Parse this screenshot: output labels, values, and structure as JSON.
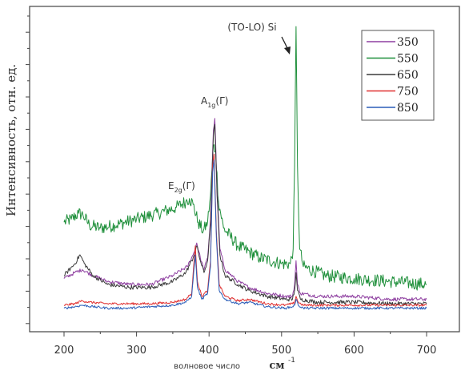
{
  "chart_data": {
    "type": "line",
    "xlabel": "волновое число",
    "xlabel_unit": "см",
    "xlabel_exp": "-1",
    "ylabel": "Интенсивность, отн. ед.",
    "xlim": [
      150,
      700
    ],
    "ylim": [
      0,
      1.0
    ],
    "x_ticks": [
      200,
      300,
      400,
      500,
      600,
      700
    ],
    "y_ticks_labeled": false,
    "grid": false,
    "legend_position": "top-right",
    "annotations": [
      {
        "id": "to-lo-si",
        "text": "(TO-LO) Si",
        "x": 520,
        "y": 0.975
      },
      {
        "id": "a1g",
        "main": "A",
        "sub": "1g",
        "tail": "(Γ)",
        "x": 408,
        "y": 0.675
      },
      {
        "id": "e2g",
        "main": "E",
        "sub": "2g",
        "tail": "(Γ)",
        "x": 372,
        "y": 0.49
      }
    ],
    "series": [
      {
        "name": "350",
        "color": "#8e3fa0",
        "points": [
          [
            200,
            0.12
          ],
          [
            215,
            0.14
          ],
          [
            225,
            0.15
          ],
          [
            240,
            0.13
          ],
          [
            260,
            0.11
          ],
          [
            290,
            0.1
          ],
          [
            320,
            0.1
          ],
          [
            350,
            0.13
          ],
          [
            370,
            0.16
          ],
          [
            378,
            0.2
          ],
          [
            383,
            0.24
          ],
          [
            388,
            0.19
          ],
          [
            393,
            0.15
          ],
          [
            398,
            0.19
          ],
          [
            402,
            0.32
          ],
          [
            406,
            0.62
          ],
          [
            408,
            0.66
          ],
          [
            411,
            0.42
          ],
          [
            415,
            0.22
          ],
          [
            422,
            0.15
          ],
          [
            440,
            0.11
          ],
          [
            455,
            0.09
          ],
          [
            480,
            0.07
          ],
          [
            505,
            0.06
          ],
          [
            515,
            0.06
          ],
          [
            518,
            0.1
          ],
          [
            520,
            0.18
          ],
          [
            522,
            0.1
          ],
          [
            526,
            0.07
          ],
          [
            550,
            0.06
          ],
          [
            600,
            0.06
          ],
          [
            650,
            0.05
          ],
          [
            700,
            0.05
          ]
        ]
      },
      {
        "name": "550",
        "color": "#1e8f3a",
        "points": [
          [
            200,
            0.31
          ],
          [
            210,
            0.32
          ],
          [
            220,
            0.34
          ],
          [
            226,
            0.335
          ],
          [
            235,
            0.3
          ],
          [
            250,
            0.29
          ],
          [
            270,
            0.3
          ],
          [
            300,
            0.32
          ],
          [
            330,
            0.34
          ],
          [
            355,
            0.36
          ],
          [
            368,
            0.38
          ],
          [
            373,
            0.39
          ],
          [
            378,
            0.37
          ],
          [
            385,
            0.31
          ],
          [
            392,
            0.28
          ],
          [
            398,
            0.31
          ],
          [
            402,
            0.4
          ],
          [
            406,
            0.57
          ],
          [
            409,
            0.55
          ],
          [
            413,
            0.38
          ],
          [
            420,
            0.29
          ],
          [
            440,
            0.23
          ],
          [
            470,
            0.19
          ],
          [
            500,
            0.17
          ],
          [
            512,
            0.17
          ],
          [
            516,
            0.22
          ],
          [
            518,
            0.5
          ],
          [
            520,
            0.97
          ],
          [
            522,
            0.5
          ],
          [
            525,
            0.22
          ],
          [
            530,
            0.16
          ],
          [
            560,
            0.13
          ],
          [
            600,
            0.12
          ],
          [
            650,
            0.11
          ],
          [
            700,
            0.1
          ]
        ]
      },
      {
        "name": "650",
        "color": "#3a3a3a",
        "points": [
          [
            200,
            0.13
          ],
          [
            215,
            0.17
          ],
          [
            222,
            0.2
          ],
          [
            228,
            0.17
          ],
          [
            240,
            0.13
          ],
          [
            260,
            0.1
          ],
          [
            290,
            0.09
          ],
          [
            320,
            0.09
          ],
          [
            350,
            0.11
          ],
          [
            368,
            0.14
          ],
          [
            378,
            0.19
          ],
          [
            383,
            0.23
          ],
          [
            388,
            0.18
          ],
          [
            393,
            0.14
          ],
          [
            398,
            0.18
          ],
          [
            402,
            0.3
          ],
          [
            406,
            0.6
          ],
          [
            408,
            0.64
          ],
          [
            411,
            0.4
          ],
          [
            415,
            0.2
          ],
          [
            422,
            0.13
          ],
          [
            440,
            0.1
          ],
          [
            455,
            0.08
          ],
          [
            480,
            0.06
          ],
          [
            505,
            0.05
          ],
          [
            515,
            0.05
          ],
          [
            518,
            0.08
          ],
          [
            520,
            0.14
          ],
          [
            522,
            0.08
          ],
          [
            526,
            0.05
          ],
          [
            550,
            0.04
          ],
          [
            600,
            0.04
          ],
          [
            650,
            0.035
          ],
          [
            700,
            0.035
          ]
        ]
      },
      {
        "name": "750",
        "color": "#e03030",
        "points": [
          [
            200,
            0.03
          ],
          [
            215,
            0.035
          ],
          [
            225,
            0.045
          ],
          [
            235,
            0.04
          ],
          [
            260,
            0.035
          ],
          [
            290,
            0.035
          ],
          [
            320,
            0.035
          ],
          [
            350,
            0.04
          ],
          [
            368,
            0.05
          ],
          [
            376,
            0.07
          ],
          [
            381,
            0.23
          ],
          [
            384,
            0.11
          ],
          [
            390,
            0.06
          ],
          [
            398,
            0.08
          ],
          [
            402,
            0.18
          ],
          [
            405,
            0.5
          ],
          [
            407,
            0.54
          ],
          [
            410,
            0.28
          ],
          [
            414,
            0.1
          ],
          [
            422,
            0.06
          ],
          [
            440,
            0.045
          ],
          [
            455,
            0.05
          ],
          [
            480,
            0.035
          ],
          [
            505,
            0.03
          ],
          [
            515,
            0.035
          ],
          [
            518,
            0.04
          ],
          [
            520,
            0.06
          ],
          [
            523,
            0.04
          ],
          [
            530,
            0.03
          ],
          [
            600,
            0.03
          ],
          [
            650,
            0.03
          ],
          [
            700,
            0.03
          ]
        ]
      },
      {
        "name": "850",
        "color": "#2a5db8",
        "points": [
          [
            200,
            0.02
          ],
          [
            215,
            0.025
          ],
          [
            225,
            0.03
          ],
          [
            240,
            0.025
          ],
          [
            260,
            0.02
          ],
          [
            290,
            0.02
          ],
          [
            320,
            0.025
          ],
          [
            350,
            0.03
          ],
          [
            368,
            0.04
          ],
          [
            376,
            0.06
          ],
          [
            381,
            0.2
          ],
          [
            384,
            0.09
          ],
          [
            390,
            0.05
          ],
          [
            398,
            0.07
          ],
          [
            402,
            0.16
          ],
          [
            405,
            0.48
          ],
          [
            407,
            0.52
          ],
          [
            410,
            0.26
          ],
          [
            414,
            0.08
          ],
          [
            422,
            0.05
          ],
          [
            440,
            0.035
          ],
          [
            455,
            0.04
          ],
          [
            480,
            0.025
          ],
          [
            505,
            0.02
          ],
          [
            515,
            0.025
          ],
          [
            518,
            0.03
          ],
          [
            520,
            0.05
          ],
          [
            523,
            0.03
          ],
          [
            530,
            0.02
          ],
          [
            600,
            0.02
          ],
          [
            650,
            0.02
          ],
          [
            700,
            0.02
          ]
        ]
      }
    ]
  }
}
